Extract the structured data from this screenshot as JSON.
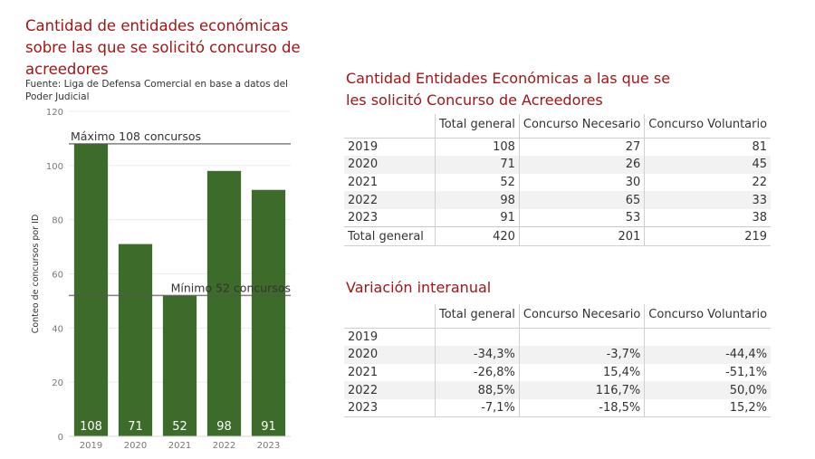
{
  "chart_data": {
    "type": "bar",
    "title": "Cantidad de entidades económicas sobre las que se solicitó concurso de acreedores",
    "subtitle": "Fuente: Liga de Defensa Comercial en base a datos del Poder Judicial",
    "ylabel": "Conteo de concursos por ID",
    "xlabel": "",
    "ylim": [
      0,
      120
    ],
    "yticks": [
      0,
      20,
      40,
      60,
      80,
      100,
      120
    ],
    "categories": [
      "2019",
      "2020",
      "2021",
      "2022",
      "2023"
    ],
    "values": [
      108,
      71,
      52,
      98,
      91
    ],
    "bar_color": "#3d6b2a",
    "grid": true,
    "reference_lines": [
      {
        "value": 108,
        "label": "Máximo 108 concursos",
        "label_position": "left"
      },
      {
        "value": 52,
        "label": "Mínimo 52 concursos",
        "label_position": "right"
      }
    ]
  },
  "table1": {
    "title": "Cantidad Entidades Económicas a las que se les solicitó Concurso de Acreedores",
    "headers": [
      "Total general",
      "Concurso Necesario",
      "Concurso Voluntario"
    ],
    "rows": [
      {
        "label": "2019",
        "values": [
          "108",
          "27",
          "81"
        ]
      },
      {
        "label": "2020",
        "values": [
          "71",
          "26",
          "45"
        ]
      },
      {
        "label": "2021",
        "values": [
          "52",
          "30",
          "22"
        ]
      },
      {
        "label": "2022",
        "values": [
          "98",
          "65",
          "33"
        ]
      },
      {
        "label": "2023",
        "values": [
          "91",
          "53",
          "38"
        ]
      },
      {
        "label": "Total general",
        "values": [
          "420",
          "201",
          "219"
        ]
      }
    ]
  },
  "table2": {
    "title": "Variación interanual",
    "headers": [
      "Total general",
      "Concurso Necesario",
      "Concurso Voluntario"
    ],
    "rows": [
      {
        "label": "2019",
        "values": [
          "",
          "",
          ""
        ]
      },
      {
        "label": "2020",
        "values": [
          "-34,3%",
          "-3,7%",
          "-44,4%"
        ]
      },
      {
        "label": "2021",
        "values": [
          "-26,8%",
          "15,4%",
          "-51,1%"
        ]
      },
      {
        "label": "2022",
        "values": [
          "88,5%",
          "116,7%",
          "50,0%"
        ]
      },
      {
        "label": "2023",
        "values": [
          "-7,1%",
          "-18,5%",
          "15,2%"
        ]
      }
    ]
  },
  "colors": {
    "title": "#a31515",
    "bar": "#3d6b2a",
    "reference_line": "#888888"
  }
}
